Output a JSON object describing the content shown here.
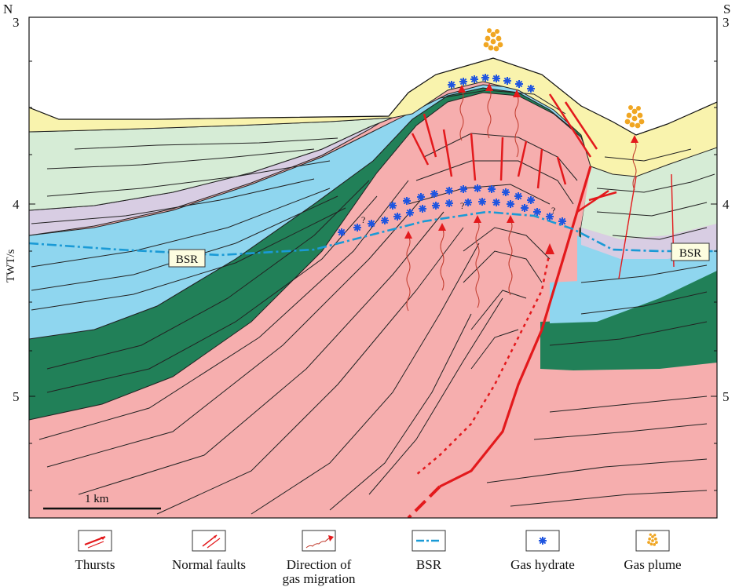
{
  "compass": {
    "left": "N",
    "right": "S"
  },
  "axis": {
    "label": "TWT/s",
    "ticks": [
      "3",
      "4",
      "5"
    ]
  },
  "annotations": {
    "bsr_left": "BSR",
    "bsr_right": "BSR",
    "uncertain_marker": "?"
  },
  "scale_bar": {
    "label": "1 km"
  },
  "legend": [
    {
      "key": "thrusts",
      "label": "Thursts"
    },
    {
      "key": "normal_faults",
      "label": "Normal faults"
    },
    {
      "key": "gas_migration",
      "label_line1": "Direction of",
      "label_line2": "gas migration"
    },
    {
      "key": "bsr",
      "label": "BSR"
    },
    {
      "key": "gas_hydrate",
      "label": "Gas hydrate"
    },
    {
      "key": "gas_plume",
      "label": "Gas plume"
    }
  ],
  "colors": {
    "yellow_layer": "#f9f3ad",
    "light_green_layer": "#d6ecd6",
    "purple_layer": "#d8cde3",
    "blue_layer": "#8fd6ef",
    "dark_green_layer": "#218058",
    "pink_layer": "#f6aeae",
    "fault_red": "#e3191c",
    "hydrate_blue": "#1f55e0",
    "bsr_blue": "#1a9ad6",
    "plume_orange": "#f0a623"
  }
}
